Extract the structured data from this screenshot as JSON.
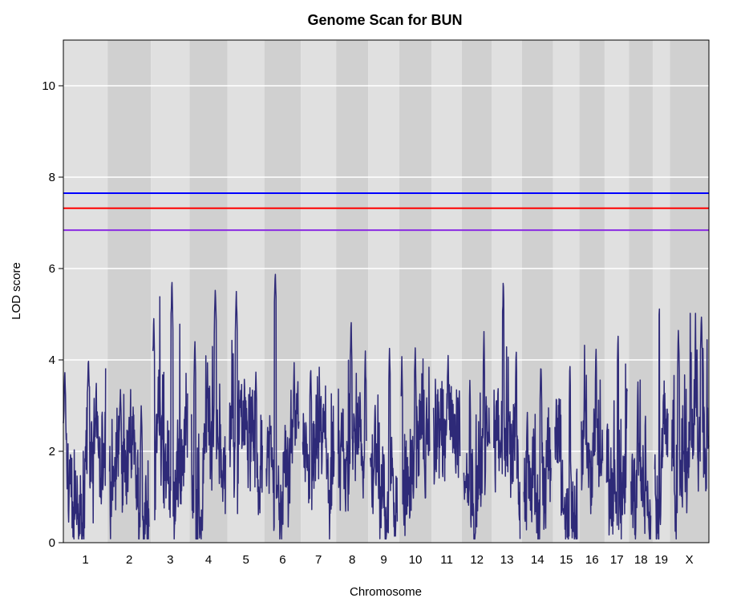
{
  "chart_data": {
    "type": "line",
    "title": "Genome Scan for BUN",
    "xlabel": "Chromosome",
    "ylabel": "LOD score",
    "ylim": [
      0,
      11
    ],
    "yticks": [
      0,
      2,
      4,
      6,
      8,
      10
    ],
    "grid": true,
    "chromosomes": [
      "1",
      "2",
      "3",
      "4",
      "5",
      "6",
      "7",
      "8",
      "9",
      "10",
      "11",
      "12",
      "13",
      "14",
      "15",
      "16",
      "17",
      "18",
      "19",
      "X"
    ],
    "chromosome_lengths": [
      195,
      182,
      160,
      157,
      152,
      150,
      145,
      130,
      125,
      131,
      122,
      120,
      121,
      125,
      104,
      98,
      95,
      91,
      61,
      171
    ],
    "band_colors": [
      "#e0e0e0",
      "#d0d0d0"
    ],
    "thresholds": [
      {
        "value": 7.65,
        "color": "#0000ff"
      },
      {
        "value": 7.32,
        "color": "#ff0000"
      },
      {
        "value": 6.84,
        "color": "#8a2be2"
      }
    ],
    "series": [
      {
        "color": "#2e2a78",
        "peaks": [
          [
            4.05,
            3.8,
            3.0,
            1.2
          ],
          [
            3.35,
            3.0,
            2.5,
            1.2
          ],
          [
            5.77,
            5.0,
            4.3,
            1.4
          ],
          [
            5.6,
            4.5,
            2.9,
            1.2
          ],
          [
            5.5,
            3.8,
            3.0,
            1.2
          ],
          [
            5.95,
            4.0,
            3.2,
            1.2
          ],
          [
            3.9,
            3.0,
            2.5,
            1.1
          ],
          [
            4.95,
            4.3,
            3.1,
            1.2
          ],
          [
            4.3,
            3.2,
            2.6,
            1.1
          ],
          [
            4.3,
            4.1,
            3.0,
            1.1
          ],
          [
            4.15,
            3.4,
            2.7,
            1.1
          ],
          [
            4.65,
            3.6,
            2.8,
            1.2
          ],
          [
            5.85,
            4.3,
            3.0,
            1.2
          ],
          [
            4.0,
            3.0,
            2.5,
            1.1
          ],
          [
            4.0,
            3.4,
            2.6,
            1.1
          ],
          [
            4.32,
            3.2,
            2.6,
            1.1
          ],
          [
            4.68,
            3.6,
            2.8,
            1.1
          ],
          [
            3.6,
            2.9,
            2.2,
            0.9
          ],
          [
            5.42,
            3.4,
            2.6,
            1.1
          ],
          [
            5.02,
            4.7,
            4.3,
            1.5
          ]
        ]
      }
    ]
  }
}
